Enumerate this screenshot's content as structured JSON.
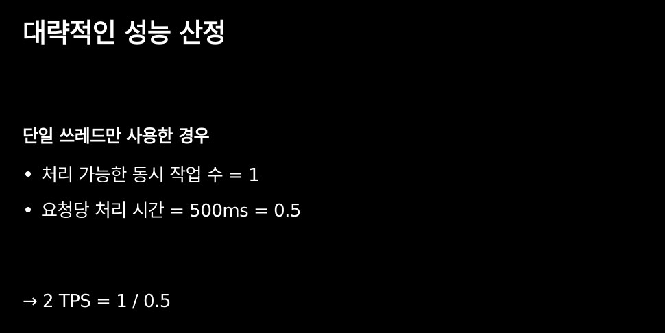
{
  "slide": {
    "title": "대략적인 성능 산정",
    "section_heading": "단일 쓰레드만 사용한 경우",
    "bullets": [
      "처리 가능한 동시 작업 수 = 1",
      "요청당 처리 시간 = 500ms = 0.5"
    ],
    "conclusion": "→ 2 TPS = 1 / 0.5"
  },
  "colors": {
    "background": "#000000",
    "text": "#ffffff"
  }
}
